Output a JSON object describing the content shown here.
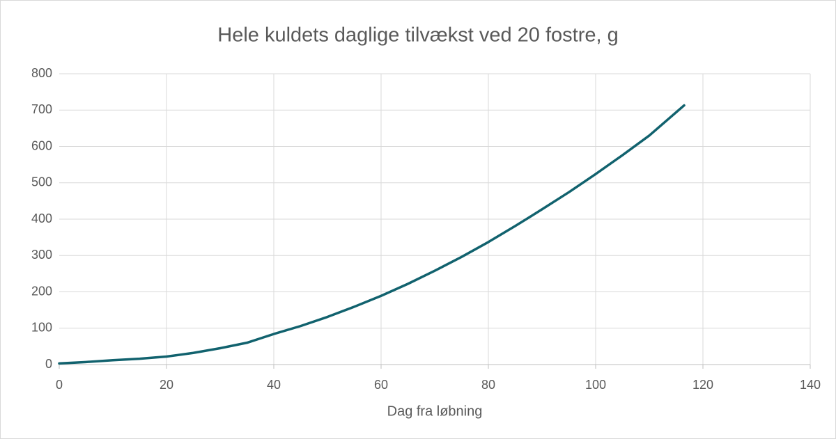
{
  "chart_data": {
    "type": "line",
    "title": "Hele kuldets daglige tilvækst ved 20 fostre, g",
    "x_label": "Dag fra løbning",
    "x": [
      0,
      5,
      10,
      15,
      20,
      25,
      30,
      35,
      40,
      45,
      50,
      55,
      60,
      65,
      70,
      75,
      80,
      85,
      90,
      95,
      100,
      105,
      110,
      116.5
    ],
    "values": [
      3,
      7,
      12,
      16,
      22,
      32,
      45,
      60,
      84,
      106,
      131,
      159,
      189,
      222,
      258,
      296,
      337,
      381,
      427,
      474,
      524,
      576,
      630,
      713
    ],
    "color": "#11626e",
    "xlim": [
      0,
      140
    ],
    "xticks": [
      0,
      20,
      40,
      60,
      80,
      100,
      120,
      140
    ],
    "ylim": [
      0,
      800
    ],
    "yticks": [
      0,
      100,
      200,
      300,
      400,
      500,
      600,
      700,
      800
    ],
    "grid": true
  }
}
